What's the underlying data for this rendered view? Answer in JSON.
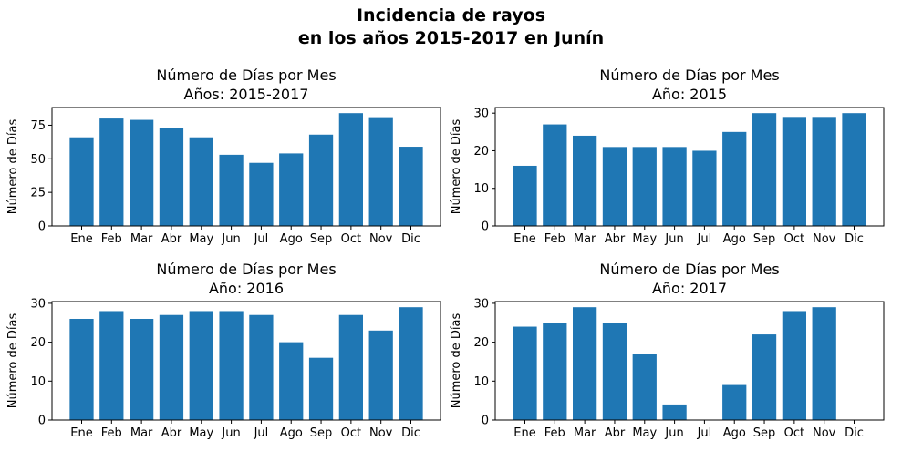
{
  "figure": {
    "title_line1": "Incidencia de rayos",
    "title_line2": "en los años 2015-2017 en Junín"
  },
  "colors": {
    "bar": "#1f77b4",
    "axis": "#000000"
  },
  "chart_data": [
    {
      "type": "bar",
      "title_line1": "Número de Días por Mes",
      "title_line2": "Años: 2015-2017",
      "xlabel": "",
      "ylabel": "Número de Días",
      "categories": [
        "Ene",
        "Feb",
        "Mar",
        "Abr",
        "May",
        "Jun",
        "Jul",
        "Ago",
        "Sep",
        "Oct",
        "Nov",
        "Dic"
      ],
      "values": [
        66,
        80,
        79,
        73,
        66,
        53,
        47,
        54,
        68,
        84,
        81,
        59
      ],
      "ylim": [
        0,
        88.2
      ],
      "yticks": [
        0,
        25,
        50,
        75
      ],
      "grid": false
    },
    {
      "type": "bar",
      "title_line1": "Número de Días por Mes",
      "title_line2": "Año: 2015",
      "xlabel": "",
      "ylabel": "Número de Días",
      "categories": [
        "Ene",
        "Feb",
        "Mar",
        "Abr",
        "May",
        "Jun",
        "Jul",
        "Ago",
        "Sep",
        "Oct",
        "Nov",
        "Dic"
      ],
      "values": [
        16,
        27,
        24,
        21,
        21,
        21,
        20,
        25,
        30,
        29,
        29,
        30
      ],
      "ylim": [
        0,
        31.5
      ],
      "yticks": [
        0,
        10,
        20,
        30
      ],
      "grid": false
    },
    {
      "type": "bar",
      "title_line1": "Número de Días por Mes",
      "title_line2": "Año: 2016",
      "xlabel": "",
      "ylabel": "Número de Días",
      "categories": [
        "Ene",
        "Feb",
        "Mar",
        "Abr",
        "May",
        "Jun",
        "Jul",
        "Ago",
        "Sep",
        "Oct",
        "Nov",
        "Dic"
      ],
      "values": [
        26,
        28,
        26,
        27,
        28,
        28,
        27,
        20,
        16,
        27,
        23,
        29
      ],
      "ylim": [
        0,
        30.45
      ],
      "yticks": [
        0,
        10,
        20,
        30
      ],
      "grid": false
    },
    {
      "type": "bar",
      "title_line1": "Número de Días por Mes",
      "title_line2": "Año: 2017",
      "xlabel": "",
      "ylabel": "Número de Días",
      "categories": [
        "Ene",
        "Feb",
        "Mar",
        "Abr",
        "May",
        "Jun",
        "Jul",
        "Ago",
        "Sep",
        "Oct",
        "Nov",
        "Dic"
      ],
      "values": [
        24,
        25,
        29,
        25,
        17,
        4,
        0,
        9,
        22,
        28,
        29,
        0
      ],
      "ylim": [
        0,
        30.45
      ],
      "yticks": [
        0,
        10,
        20,
        30
      ],
      "grid": false
    }
  ]
}
